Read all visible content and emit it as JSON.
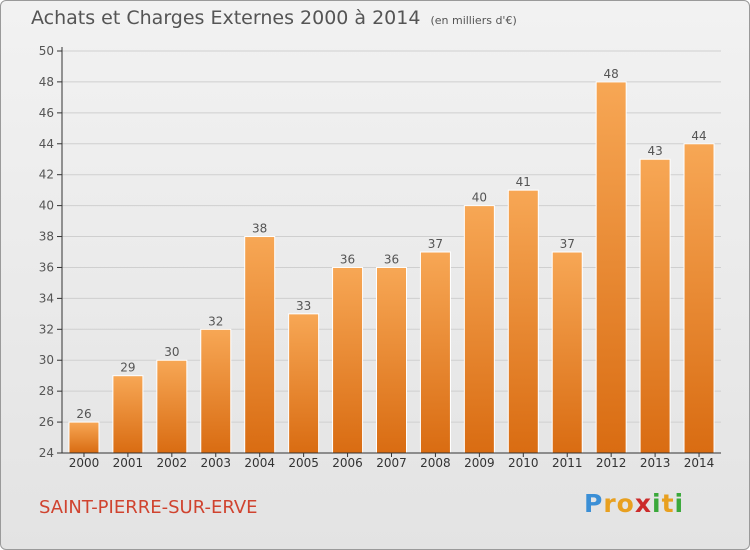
{
  "header": {
    "title": "Achats et Charges Externes 2000 à 2014",
    "unit": "(en milliers d'€)"
  },
  "commune": "SAINT-PIERRE-SUR-ERVE",
  "logo": {
    "letters": [
      "P",
      "r",
      "o",
      "x",
      "i",
      "t",
      "i"
    ],
    "colors": [
      "#3b8fd6",
      "#e8a020",
      "#e8a020",
      "#cc2b2b",
      "#3aa83a",
      "#e8a020",
      "#3aa83a"
    ]
  },
  "colors": {
    "bar_top": "#f7a755",
    "bar_bottom": "#d96c12",
    "axis": "#333333",
    "grid": "#cfcfcf",
    "text": "#555555",
    "commune": "#d0432f"
  },
  "chart_data": {
    "type": "bar",
    "categories": [
      "2000",
      "2001",
      "2002",
      "2003",
      "2004",
      "2005",
      "2006",
      "2007",
      "2008",
      "2009",
      "2010",
      "2011",
      "2012",
      "2013",
      "2014"
    ],
    "values": [
      26,
      29,
      30,
      32,
      38,
      33,
      36,
      36,
      37,
      40,
      41,
      37,
      48,
      43,
      44
    ],
    "ylim": [
      24,
      50
    ],
    "yticks": [
      24,
      26,
      28,
      30,
      32,
      34,
      36,
      38,
      40,
      42,
      44,
      46,
      48,
      50
    ],
    "grid": true
  }
}
